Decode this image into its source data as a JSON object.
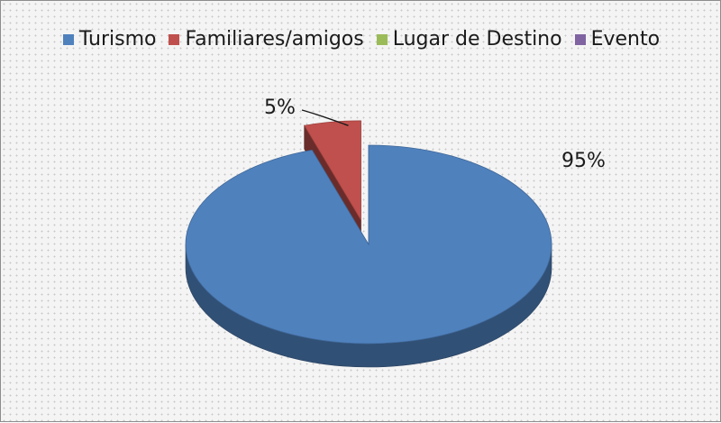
{
  "chart_data": {
    "type": "pie",
    "style": "3d-exploded",
    "categories": [
      "Turismo",
      "Familiares/amigos",
      "Lugar de Destino",
      "Evento"
    ],
    "values": [
      95,
      5,
      0,
      0
    ],
    "unit": "%",
    "data_labels": [
      "95%",
      "5%",
      "",
      ""
    ],
    "colors": [
      "#4f81bd",
      "#c0504d",
      "#9bbb59",
      "#8064a2"
    ],
    "legend_position": "top",
    "grid": false
  }
}
